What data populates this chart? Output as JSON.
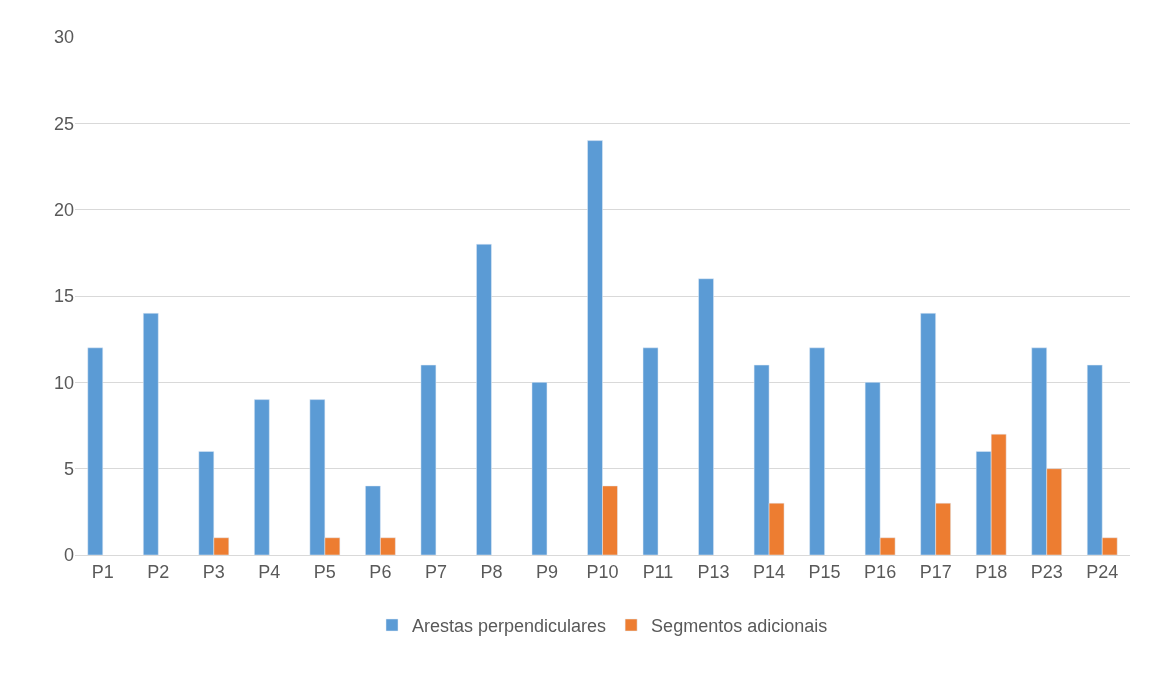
{
  "chart_data": {
    "type": "bar",
    "categories": [
      "P1",
      "P2",
      "P3",
      "P4",
      "P5",
      "P6",
      "P7",
      "P8",
      "P9",
      "P10",
      "P11",
      "P13",
      "P14",
      "P15",
      "P16",
      "P17",
      "P18",
      "P23",
      "P24"
    ],
    "series": [
      {
        "name": "Arestas perpendiculares",
        "color": "#5b9bd5",
        "values": [
          12,
          14,
          6,
          9,
          9,
          4,
          11,
          18,
          10,
          24,
          12,
          16,
          11,
          12,
          10,
          14,
          6,
          12,
          11
        ]
      },
      {
        "name": "Segmentos adicionais",
        "color": "#ed7d31",
        "values": [
          null,
          null,
          1,
          null,
          1,
          1,
          null,
          null,
          null,
          4,
          null,
          null,
          3,
          null,
          1,
          3,
          7,
          5,
          1
        ]
      }
    ],
    "ylim": [
      0,
      30
    ],
    "yticks": [
      0,
      5,
      10,
      15,
      20,
      25,
      30
    ],
    "grid": "y",
    "legend": "bottom"
  }
}
